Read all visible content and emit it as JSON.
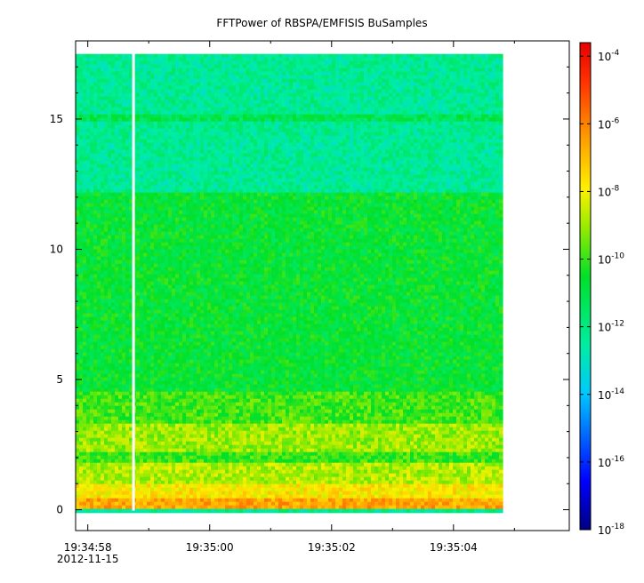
{
  "chart_data": {
    "type": "heatmap",
    "title": "FFTPower of RBSPA/EMFISIS  BuSamples",
    "xlabel": "",
    "ylabel": "",
    "x_axis": {
      "type": "time",
      "ticks": [
        {
          "label": "19:34:58",
          "label2": "2012-11-15",
          "seconds": 0
        },
        {
          "label": "19:35:00",
          "seconds": 2
        },
        {
          "label": "19:35:02",
          "seconds": 4
        },
        {
          "label": "19:35:04",
          "seconds": 6
        }
      ],
      "range_seconds": [
        -0.2,
        7.9
      ],
      "data_range_seconds": [
        -0.2,
        6.8
      ],
      "gap_seconds": 0.75
    },
    "y_axis": {
      "ticks": [
        0,
        5,
        10,
        15
      ],
      "range": [
        -0.8,
        18.0
      ],
      "data_range": [
        0,
        17.5
      ]
    },
    "colorbar": {
      "scale": "log",
      "range_exp": [
        -18,
        -3.6
      ],
      "tick_exponents": [
        -18,
        -16,
        -14,
        -12,
        -10,
        -8,
        -6,
        -4
      ],
      "base_label": "10"
    },
    "bands": [
      {
        "y_from": 0.0,
        "y_to": 0.5,
        "log_power": -6.6
      },
      {
        "y_from": 0.5,
        "y_to": 1.0,
        "log_power": -7.8
      },
      {
        "y_from": 1.0,
        "y_to": 1.8,
        "log_power": -8.8
      },
      {
        "y_from": 1.8,
        "y_to": 2.2,
        "log_power": -10.0
      },
      {
        "y_from": 2.2,
        "y_to": 3.3,
        "log_power": -9.0
      },
      {
        "y_from": 3.3,
        "y_to": 4.5,
        "log_power": -9.9
      },
      {
        "y_from": 4.5,
        "y_to": 12.2,
        "log_power": -10.7
      },
      {
        "y_from": 12.2,
        "y_to": 17.5,
        "log_power": -12.3
      }
    ],
    "line_feature": {
      "y": 15.0,
      "log_power": -11.2
    }
  }
}
